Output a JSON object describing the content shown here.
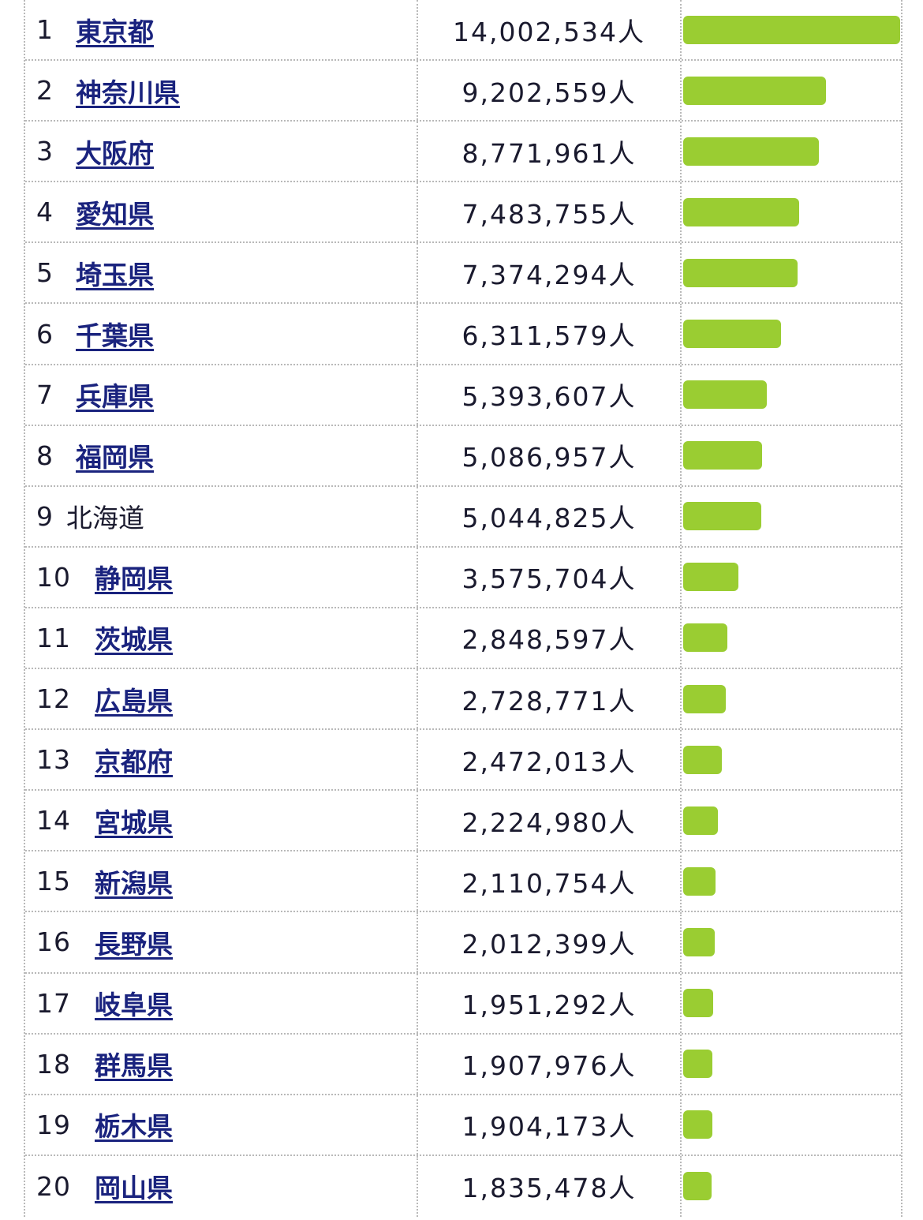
{
  "table": {
    "unit": "人",
    "max_value": 14002534,
    "colors": {
      "bar": "#9acd32",
      "link": "#1a237e",
      "text": "#1a1a2e",
      "border": "#b9b9b9"
    },
    "rows": [
      {
        "rank": "1",
        "name": "東京都",
        "value": 14002534,
        "display": "14,002,534人",
        "link": true
      },
      {
        "rank": "2",
        "name": "神奈川県",
        "value": 9202559,
        "display": "9,202,559人",
        "link": true
      },
      {
        "rank": "3",
        "name": "大阪府",
        "value": 8771961,
        "display": "8,771,961人",
        "link": true
      },
      {
        "rank": "4",
        "name": "愛知県",
        "value": 7483755,
        "display": "7,483,755人",
        "link": true
      },
      {
        "rank": "5",
        "name": "埼玉県",
        "value": 7374294,
        "display": "7,374,294人",
        "link": true
      },
      {
        "rank": "6",
        "name": "千葉県",
        "value": 6311579,
        "display": "6,311,579人",
        "link": true
      },
      {
        "rank": "7",
        "name": "兵庫県",
        "value": 5393607,
        "display": "5,393,607人",
        "link": true
      },
      {
        "rank": "8",
        "name": "福岡県",
        "value": 5086957,
        "display": "5,086,957人",
        "link": true
      },
      {
        "rank": "9",
        "name": "北海道",
        "value": 5044825,
        "display": "5,044,825人",
        "link": false
      },
      {
        "rank": "10",
        "name": "静岡県",
        "value": 3575704,
        "display": "3,575,704人",
        "link": true
      },
      {
        "rank": "11",
        "name": "茨城県",
        "value": 2848597,
        "display": "2,848,597人",
        "link": true
      },
      {
        "rank": "12",
        "name": "広島県",
        "value": 2728771,
        "display": "2,728,771人",
        "link": true
      },
      {
        "rank": "13",
        "name": "京都府",
        "value": 2472013,
        "display": "2,472,013人",
        "link": true
      },
      {
        "rank": "14",
        "name": "宮城県",
        "value": 2224980,
        "display": "2,224,980人",
        "link": true
      },
      {
        "rank": "15",
        "name": "新潟県",
        "value": 2110754,
        "display": "2,110,754人",
        "link": true
      },
      {
        "rank": "16",
        "name": "長野県",
        "value": 2012399,
        "display": "2,012,399人",
        "link": true
      },
      {
        "rank": "17",
        "name": "岐阜県",
        "value": 1951292,
        "display": "1,951,292人",
        "link": true
      },
      {
        "rank": "18",
        "name": "群馬県",
        "value": 1907976,
        "display": "1,907,976人",
        "link": true
      },
      {
        "rank": "19",
        "name": "栃木県",
        "value": 1904173,
        "display": "1,904,173人",
        "link": true
      },
      {
        "rank": "20",
        "name": "岡山県",
        "value": 1835478,
        "display": "1,835,478人",
        "link": true
      }
    ]
  }
}
